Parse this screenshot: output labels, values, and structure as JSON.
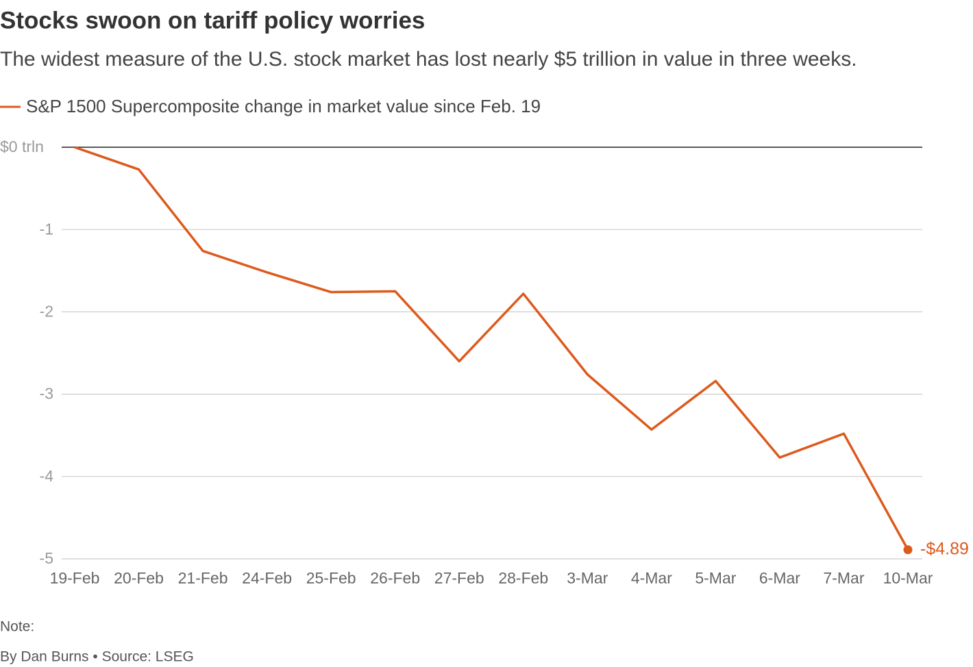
{
  "chart_data": {
    "type": "line",
    "title": "Stocks swoon on tariff policy worries",
    "subtitle": "The widest measure of the U.S. stock market has lost nearly $5 trillion in value in three weeks.",
    "note": "Note:",
    "source": "By Dan Burns • Source: LSEG",
    "categories": [
      "19-Feb",
      "20-Feb",
      "21-Feb",
      "24-Feb",
      "25-Feb",
      "26-Feb",
      "27-Feb",
      "28-Feb",
      "3-Mar",
      "4-Mar",
      "5-Mar",
      "6-Mar",
      "7-Mar",
      "10-Mar"
    ],
    "series": [
      {
        "name": "S&P 1500 Supercomposite change in market value since Feb. 19",
        "color": "#dc5a1c",
        "values": [
          0,
          -0.27,
          -1.26,
          -1.52,
          -1.76,
          -1.75,
          -2.6,
          -1.78,
          -2.76,
          -3.43,
          -2.84,
          -3.77,
          -3.48,
          -4.89
        ],
        "value_labels": [
          null,
          null,
          null,
          null,
          null,
          null,
          null,
          null,
          null,
          null,
          null,
          null,
          null,
          "-$4.89"
        ]
      }
    ],
    "ylim": [
      -5,
      0
    ],
    "yticks": [
      {
        "value": 0,
        "label": "$0 trln"
      },
      -1,
      -2,
      -3,
      -4,
      -5
    ],
    "grid": true
  }
}
